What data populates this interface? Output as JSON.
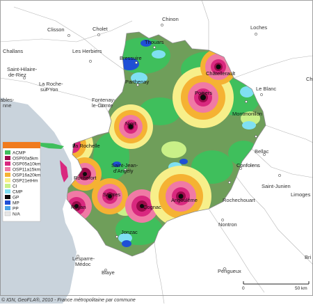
{
  "map": {
    "cities": [
      {
        "label": "Chinon"
      },
      {
        "label": "Clisson"
      },
      {
        "label": "Cholet"
      },
      {
        "label": "Loches"
      },
      {
        "label": "Challans"
      },
      {
        "label": "Les Herbiers"
      },
      {
        "label": "Bressuire"
      },
      {
        "label": "Thouars"
      },
      {
        "label": "Châtellerault"
      },
      {
        "label": "Saint-Hilaire-"
      },
      {
        "label": "de-Riez"
      },
      {
        "label": "Parthenay"
      },
      {
        "label": "Poitiers"
      },
      {
        "label": "Le Blanc"
      },
      {
        "label": "La Roche-"
      },
      {
        "label": "sur-Yon"
      },
      {
        "label": "Fontenay-"
      },
      {
        "label": "le-Comte"
      },
      {
        "label": "Montmorillon"
      },
      {
        "label": "Niort"
      },
      {
        "label": "La Rochelle"
      },
      {
        "label": "Saint-Jean-"
      },
      {
        "label": "d'Angély"
      },
      {
        "label": "Rochefort"
      },
      {
        "label": "Confolens"
      },
      {
        "label": "Bellac"
      },
      {
        "label": "Saint-Junien"
      },
      {
        "label": "Limoges"
      },
      {
        "label": "Saintes"
      },
      {
        "label": "Cognac"
      },
      {
        "label": "Rochechouart"
      },
      {
        "label": "Royan"
      },
      {
        "label": "Angoulême"
      },
      {
        "label": "Jonzac"
      },
      {
        "label": "Nontron"
      },
      {
        "label": "Lesparre-"
      },
      {
        "label": "Médoc"
      },
      {
        "label": "Blaye"
      },
      {
        "label": "Périgueux"
      },
      {
        "label": "Bri"
      },
      {
        "label": "Ch"
      },
      {
        "label": "ables-"
      },
      {
        "label": "nne"
      }
    ],
    "legend": {
      "title": "",
      "items": [
        {
          "label": "ACMP",
          "color": "#3fbf5c"
        },
        {
          "label": "OSP00a5km",
          "color": "#9b0a4b"
        },
        {
          "label": "OSP05a10km",
          "color": "#d9287f"
        },
        {
          "label": "OSP11a15km",
          "color": "#f07aa5"
        },
        {
          "label": "OSP16a20km",
          "color": "#f5b233"
        },
        {
          "label": "OSP21etHm",
          "color": "#f7ef8a"
        },
        {
          "label": "CI",
          "color": "#c9f088"
        },
        {
          "label": "CMP",
          "color": "#7fe0f2"
        },
        {
          "label": "GP",
          "color": "#0b0b0b"
        },
        {
          "label": "MP",
          "color": "#1f4fd6"
        },
        {
          "label": "PP",
          "color": "#4aa3e8"
        },
        {
          "label": "N/A",
          "color": "#e6e6e6"
        }
      ]
    },
    "scale": {
      "start": "0",
      "end": "50 km"
    },
    "credit": "© IGN, GeoFLA®, 2010 - France métropolitaine par commune",
    "colors": {
      "sea": "#c9d3dc",
      "land": "#ffffff",
      "region_base": "#6f9e5a",
      "acmp": "#3fbf5c",
      "border": "#8a8a8a"
    }
  }
}
